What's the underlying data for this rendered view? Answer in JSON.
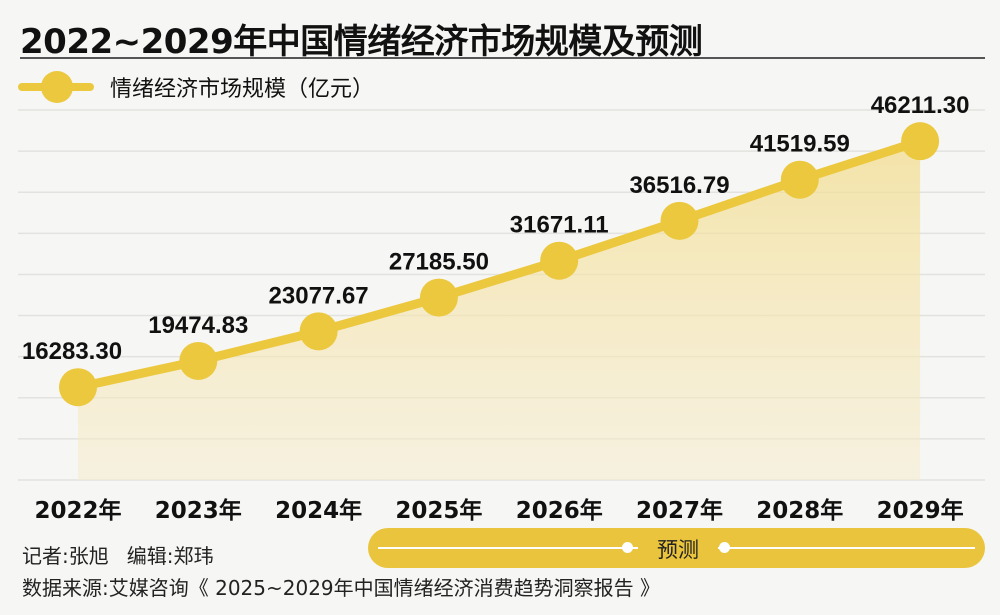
{
  "title": "2022~2029年中国情绪经济市场规模及预测",
  "chart_data": {
    "type": "line",
    "title": "2022~2029年中国情绪经济市场规模及预测",
    "categories": [
      "2022年",
      "2023年",
      "2024年",
      "2025年",
      "2026年",
      "2027年",
      "2028年",
      "2029年"
    ],
    "series": [
      {
        "name": "情绪经济市场规模（亿元）",
        "values": [
          16283.3,
          19474.83,
          23077.67,
          27185.5,
          31671.11,
          36516.79,
          41519.59,
          46211.3
        ]
      }
    ],
    "value_labels": [
      "16283.30",
      "19474.83",
      "23077.67",
      "27185.50",
      "31671.11",
      "36516.79",
      "41519.59",
      "46211.30"
    ],
    "ylim": [
      5000,
      50000
    ],
    "grid": true,
    "area_fill": true,
    "legend": "top-left",
    "forecast_label": "预测",
    "forecast_range": [
      "2025年",
      "2029年"
    ],
    "colors": {
      "line": "#ecc83f",
      "area": "#f5e6b0",
      "pill": "#e9c43c"
    }
  },
  "footer": {
    "reporter": "记者:张旭",
    "editor": "编辑:郑玮",
    "source": "数据来源:艾媒咨询《 2025~2029年中国情绪经济消费趋势洞察报告 》"
  }
}
